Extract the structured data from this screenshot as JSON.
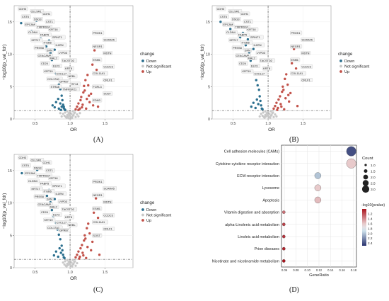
{
  "colors": {
    "down": "#2b6f8e",
    "ns": "#c8c8c8",
    "up": "#c2524a",
    "label_box": "#f4f4f4"
  },
  "panel_labels": [
    "(A)",
    "(B)",
    "(C)",
    "(D)"
  ],
  "volcano_common": {
    "xlabel": "OR",
    "ylabel": "−log10(p_val_fdr)",
    "legend_title": "change",
    "legend_items": [
      "Down",
      "Not significant",
      "Up"
    ],
    "xticks": [
      "0.5",
      "1.0",
      "1.5"
    ],
    "yticks": [
      "0",
      "5",
      "10",
      "15"
    ]
  },
  "chart_data": [
    {
      "type": "scatter",
      "panel": "A",
      "xlim": [
        0.2,
        1.9
      ],
      "ylim": [
        0,
        17.5
      ],
      "vline": 1.0,
      "hline": 1.3,
      "down_labels": [
        "CDH3",
        "CELSR1",
        "CDH1",
        "CST6",
        "DSG3",
        "CST1",
        "EPCAM",
        "TMPRSS4",
        "KRT18",
        "CLDN4",
        "FABP5",
        "SPINT1",
        "KRT17",
        "ITGB6",
        "IL1RN",
        "PRSS8",
        "SFN",
        "LYPD3",
        "CEACAM5",
        "MAL2",
        "TACSTD2",
        "CD24",
        "ELF3",
        "KRT8",
        "KRT19",
        "CXCL17",
        "NEBL",
        "COL17A1",
        "GPR87",
        "ST14",
        "STRA6",
        "TNFRSF21"
      ],
      "up_labels": [
        "PROK1",
        "SCARA5",
        "NEGR1",
        "MSTN",
        "ESM1",
        "CCDC3",
        "COL11A1",
        "CRLF1",
        "FCRL3",
        "SOST",
        "EDN3"
      ],
      "down_points": [
        [
          0.3,
          14.8
        ],
        [
          0.45,
          13.6
        ],
        [
          0.52,
          15.2
        ],
        [
          0.58,
          12.4
        ],
        [
          0.63,
          13.1
        ],
        [
          0.66,
          11.2
        ],
        [
          0.7,
          12.1
        ],
        [
          0.72,
          10.2
        ],
        [
          0.74,
          9.1
        ],
        [
          0.76,
          8.2
        ],
        [
          0.78,
          10.7
        ],
        [
          0.8,
          7.0
        ],
        [
          0.82,
          6.1
        ],
        [
          0.84,
          5.3
        ],
        [
          0.86,
          4.6
        ],
        [
          0.88,
          3.6
        ],
        [
          0.89,
          2.9
        ],
        [
          0.9,
          2.2
        ],
        [
          0.91,
          1.7
        ],
        [
          0.92,
          1.5
        ],
        [
          0.84,
          1.6
        ],
        [
          0.78,
          1.8
        ],
        [
          0.86,
          2.4
        ],
        [
          0.93,
          1.4
        ],
        [
          0.87,
          1.4
        ],
        [
          0.8,
          2.6
        ],
        [
          0.88,
          1.9
        ],
        [
          0.83,
          3.1
        ],
        [
          0.75,
          2.1
        ],
        [
          0.91,
          1.9
        ]
      ],
      "up_points": [
        [
          1.08,
          1.5
        ],
        [
          1.1,
          1.9
        ],
        [
          1.12,
          2.4
        ],
        [
          1.14,
          1.6
        ],
        [
          1.15,
          2.9
        ],
        [
          1.16,
          3.4
        ],
        [
          1.18,
          2.2
        ],
        [
          1.19,
          4.1
        ],
        [
          1.2,
          5.1
        ],
        [
          1.21,
          4.4
        ],
        [
          1.22,
          6.0
        ],
        [
          1.24,
          3.1
        ],
        [
          1.25,
          6.8
        ],
        [
          1.26,
          5.2
        ],
        [
          1.28,
          2.6
        ],
        [
          1.3,
          3.9
        ],
        [
          1.32,
          8.4
        ],
        [
          1.35,
          10.6
        ],
        [
          1.38,
          7.6
        ],
        [
          1.4,
          1.9
        ],
        [
          1.12,
          1.4
        ],
        [
          1.17,
          1.8
        ],
        [
          1.23,
          1.6
        ],
        [
          1.33,
          2.1
        ],
        [
          1.27,
          3.6
        ]
      ],
      "ns_points": [
        [
          0.94,
          0.3
        ],
        [
          0.96,
          0.6
        ],
        [
          0.98,
          0.9
        ],
        [
          1.0,
          1.1
        ],
        [
          1.02,
          0.8
        ],
        [
          1.04,
          0.5
        ],
        [
          1.06,
          0.9
        ],
        [
          0.95,
          0.2
        ],
        [
          0.97,
          0.4
        ],
        [
          0.99,
          0.7
        ],
        [
          1.01,
          0.3
        ],
        [
          1.03,
          0.2
        ],
        [
          1.05,
          0.6
        ],
        [
          0.92,
          0.5
        ],
        [
          1.08,
          0.3
        ],
        [
          1.1,
          0.7
        ],
        [
          0.9,
          0.8
        ],
        [
          0.93,
          1.0
        ],
        [
          1.07,
          1.0
        ],
        [
          1.0,
          0.5
        ],
        [
          0.96,
          1.2
        ],
        [
          1.04,
          1.2
        ],
        [
          0.98,
          0.1
        ],
        [
          1.02,
          0.1
        ],
        [
          0.88,
          0.4
        ],
        [
          1.12,
          0.4
        ],
        [
          0.86,
          0.9
        ],
        [
          1.14,
          0.9
        ]
      ]
    },
    {
      "type": "scatter",
      "panel": "B",
      "xlim": [
        0.2,
        1.9
      ],
      "ylim": [
        0,
        17.5
      ],
      "vline": 1.0,
      "hline": 1.3,
      "down_labels": [
        "CDH3",
        "CELSR1",
        "CDH1",
        "CST6",
        "DSG3",
        "CST1",
        "EPCAM",
        "TMPRSS4",
        "KRT18",
        "CLDN4",
        "FABP5",
        "SPINT1",
        "KRT17",
        "ITGB6",
        "IL1RN",
        "PRSS8",
        "SFN",
        "LYPD3",
        "CEACAM5",
        "MAL2",
        "TACSTD2",
        "CD24",
        "ELF3",
        "KRT8",
        "KRT19",
        "CXCL17"
      ],
      "up_labels": [
        "PROK1",
        "SCARA5",
        "NEGR1",
        "MSTN",
        "ESM1",
        "CCDC3",
        "COL11A1",
        "CRLF1"
      ],
      "down_points": [
        [
          0.32,
          15.0
        ],
        [
          0.46,
          13.9
        ],
        [
          0.54,
          15.4
        ],
        [
          0.6,
          12.6
        ],
        [
          0.64,
          13.3
        ],
        [
          0.68,
          11.4
        ],
        [
          0.71,
          12.3
        ],
        [
          0.73,
          10.3
        ],
        [
          0.75,
          9.0
        ],
        [
          0.77,
          8.1
        ],
        [
          0.79,
          10.8
        ],
        [
          0.81,
          7.1
        ],
        [
          0.83,
          6.0
        ],
        [
          0.85,
          5.2
        ],
        [
          0.87,
          4.5
        ],
        [
          0.88,
          3.5
        ],
        [
          0.89,
          2.8
        ],
        [
          0.9,
          2.1
        ],
        [
          0.91,
          1.6
        ],
        [
          0.92,
          1.5
        ],
        [
          0.82,
          1.7
        ],
        [
          0.86,
          2.3
        ],
        [
          0.79,
          2.5
        ],
        [
          0.84,
          3.0
        ],
        [
          0.76,
          1.9
        ]
      ],
      "up_points": [
        [
          1.08,
          1.6
        ],
        [
          1.1,
          2.0
        ],
        [
          1.12,
          2.5
        ],
        [
          1.14,
          1.7
        ],
        [
          1.15,
          3.0
        ],
        [
          1.17,
          3.5
        ],
        [
          1.18,
          2.3
        ],
        [
          1.2,
          4.2
        ],
        [
          1.21,
          5.0
        ],
        [
          1.22,
          4.5
        ],
        [
          1.24,
          6.2
        ],
        [
          1.25,
          3.2
        ],
        [
          1.26,
          6.9
        ],
        [
          1.28,
          5.3
        ],
        [
          1.3,
          2.7
        ],
        [
          1.32,
          4.0
        ],
        [
          1.34,
          8.6
        ],
        [
          1.37,
          10.8
        ],
        [
          1.4,
          7.8
        ],
        [
          1.42,
          2.0
        ],
        [
          1.13,
          1.4
        ],
        [
          1.19,
          1.9
        ],
        [
          1.23,
          1.5
        ],
        [
          1.29,
          3.7
        ]
      ],
      "ns_points": [
        [
          0.94,
          0.3
        ],
        [
          0.96,
          0.6
        ],
        [
          0.98,
          0.9
        ],
        [
          1.0,
          1.1
        ],
        [
          1.02,
          0.8
        ],
        [
          1.04,
          0.5
        ],
        [
          1.06,
          0.9
        ],
        [
          0.95,
          0.2
        ],
        [
          0.97,
          0.4
        ],
        [
          0.99,
          0.7
        ],
        [
          1.01,
          0.3
        ],
        [
          1.03,
          0.2
        ],
        [
          1.05,
          0.6
        ],
        [
          0.92,
          0.5
        ],
        [
          1.08,
          0.3
        ],
        [
          1.1,
          0.7
        ],
        [
          0.9,
          0.8
        ],
        [
          0.93,
          1.0
        ],
        [
          1.07,
          1.0
        ],
        [
          1.0,
          0.5
        ],
        [
          0.96,
          1.2
        ],
        [
          1.04,
          1.2
        ],
        [
          0.88,
          0.4
        ],
        [
          1.12,
          0.4
        ]
      ]
    },
    {
      "type": "scatter",
      "panel": "C",
      "xlim": [
        0.2,
        1.9
      ],
      "ylim": [
        0,
        17.5
      ],
      "vline": 1.0,
      "hline": 1.3,
      "down_labels": [
        "CDH3",
        "CELSR1",
        "CDH1",
        "CST6",
        "DSG3",
        "CST1",
        "EPCAM",
        "TMPRSS4",
        "KRT18",
        "CLDN4",
        "FABP5",
        "SPINT1",
        "KRT17",
        "ITGB6",
        "IL1RN",
        "PRSS8",
        "SFN",
        "LYPD3",
        "CEACAM5",
        "MAL2",
        "TACSTD2",
        "CD24",
        "ELF3",
        "KRT8",
        "KRT19",
        "CXCL17",
        "NEBL",
        "COL17A1",
        "GPR87"
      ],
      "up_labels": [
        "PROK1",
        "SCARA5",
        "NEGR1",
        "MSTN",
        "ESM1",
        "CCDC3",
        "COL11A1",
        "CRLF1",
        "SOST"
      ],
      "down_points": [
        [
          0.31,
          14.6
        ],
        [
          0.44,
          13.5
        ],
        [
          0.53,
          15.1
        ],
        [
          0.59,
          12.3
        ],
        [
          0.63,
          13.0
        ],
        [
          0.67,
          11.1
        ],
        [
          0.7,
          12.0
        ],
        [
          0.72,
          10.1
        ],
        [
          0.74,
          8.9
        ],
        [
          0.76,
          8.0
        ],
        [
          0.78,
          10.6
        ],
        [
          0.8,
          6.9
        ],
        [
          0.82,
          5.9
        ],
        [
          0.84,
          5.1
        ],
        [
          0.86,
          4.4
        ],
        [
          0.88,
          3.4
        ],
        [
          0.89,
          2.7
        ],
        [
          0.9,
          2.0
        ],
        [
          0.91,
          1.6
        ],
        [
          0.92,
          1.5
        ],
        [
          0.83,
          1.7
        ],
        [
          0.87,
          2.3
        ],
        [
          0.8,
          2.5
        ],
        [
          0.85,
          3.0
        ],
        [
          0.77,
          1.9
        ]
      ],
      "up_points": [
        [
          1.08,
          1.6
        ],
        [
          1.1,
          2.0
        ],
        [
          1.12,
          2.5
        ],
        [
          1.14,
          1.7
        ],
        [
          1.15,
          3.0
        ],
        [
          1.17,
          3.5
        ],
        [
          1.18,
          2.3
        ],
        [
          1.2,
          4.2
        ],
        [
          1.21,
          5.0
        ],
        [
          1.22,
          4.5
        ],
        [
          1.24,
          6.1
        ],
        [
          1.25,
          3.2
        ],
        [
          1.26,
          6.8
        ],
        [
          1.28,
          5.3
        ],
        [
          1.3,
          2.7
        ],
        [
          1.32,
          4.0
        ],
        [
          1.34,
          8.5
        ],
        [
          1.37,
          10.7
        ],
        [
          1.4,
          7.7
        ],
        [
          1.42,
          2.0
        ],
        [
          1.13,
          1.4
        ],
        [
          1.19,
          1.9
        ],
        [
          1.23,
          1.5
        ]
      ],
      "ns_points": [
        [
          0.94,
          0.3
        ],
        [
          0.96,
          0.6
        ],
        [
          0.98,
          0.9
        ],
        [
          1.0,
          1.1
        ],
        [
          1.02,
          0.8
        ],
        [
          1.04,
          0.5
        ],
        [
          1.06,
          0.9
        ],
        [
          0.95,
          0.2
        ],
        [
          0.97,
          0.4
        ],
        [
          0.99,
          0.7
        ],
        [
          1.01,
          0.3
        ],
        [
          1.03,
          0.2
        ],
        [
          1.05,
          0.6
        ],
        [
          0.92,
          0.5
        ],
        [
          1.08,
          0.3
        ],
        [
          1.1,
          0.7
        ],
        [
          0.9,
          0.8
        ],
        [
          0.93,
          1.0
        ],
        [
          1.07,
          1.0
        ],
        [
          1.0,
          0.5
        ],
        [
          0.96,
          1.2
        ],
        [
          1.04,
          1.2
        ]
      ]
    },
    {
      "type": "scatter",
      "panel": "D",
      "xlabel": "GeneRatio",
      "xlim": [
        0.055,
        0.185
      ],
      "xticks": [
        "0.06",
        "0.08",
        "0.10",
        "0.12",
        "0.14",
        "0.16",
        "0.18"
      ],
      "xtick_values": [
        0.06,
        0.08,
        0.1,
        0.12,
        0.14,
        0.16,
        0.18
      ],
      "categories": [
        "Cell adhesion molecules (CAMs)",
        "Cytokine-cytokine receptor interaction",
        "ECM-receptor interaction",
        "Lysosome",
        "Apoptosis",
        "Vitamin digestion and absorption",
        "alpha-Linolenic acid metabolism",
        "Linoleic acid metabolism",
        "Prion diseases",
        "Nicotinate and nicotinamide metabolism"
      ],
      "points": [
        {
          "term": "Cell adhesion molecules (CAMs)",
          "x": 0.176,
          "count": 3,
          "pvalue_log": 2.4
        },
        {
          "term": "Cytokine-cytokine receptor interaction",
          "x": 0.176,
          "count": 3,
          "pvalue_log": 1.6
        },
        {
          "term": "ECM-receptor interaction",
          "x": 0.118,
          "count": 2,
          "pvalue_log": 2.0
        },
        {
          "term": "Lysosome",
          "x": 0.118,
          "count": 2,
          "pvalue_log": 1.6
        },
        {
          "term": "Apoptosis",
          "x": 0.118,
          "count": 2,
          "pvalue_log": 1.55
        },
        {
          "term": "Vitamin digestion and absorption",
          "x": 0.059,
          "count": 1,
          "pvalue_log": 1.3
        },
        {
          "term": "alpha-Linolenic acid metabolism",
          "x": 0.059,
          "count": 1,
          "pvalue_log": 1.15
        },
        {
          "term": "Linoleic acid metabolism",
          "x": 0.059,
          "count": 1,
          "pvalue_log": 1.1
        },
        {
          "term": "Prion diseases",
          "x": 0.059,
          "count": 1,
          "pvalue_log": 1.05
        },
        {
          "term": "Nicotinate and nicotinamide metabolism",
          "x": 0.059,
          "count": 1,
          "pvalue_log": 1.0
        }
      ],
      "size_legend_title": "Count",
      "size_legend_labels": [
        "1.0",
        "1.5",
        "2.0",
        "2.5",
        "3.0"
      ],
      "size_legend_values": [
        1.0,
        1.5,
        2.0,
        2.5,
        3.0
      ],
      "color_legend_title": "-log10(pvalue)",
      "color_legend_labels": [
        "1.2",
        "1.4",
        "1.6",
        "1.8",
        "2.0",
        "2.2",
        "2.4"
      ],
      "color_range": [
        1.0,
        2.5
      ]
    }
  ]
}
